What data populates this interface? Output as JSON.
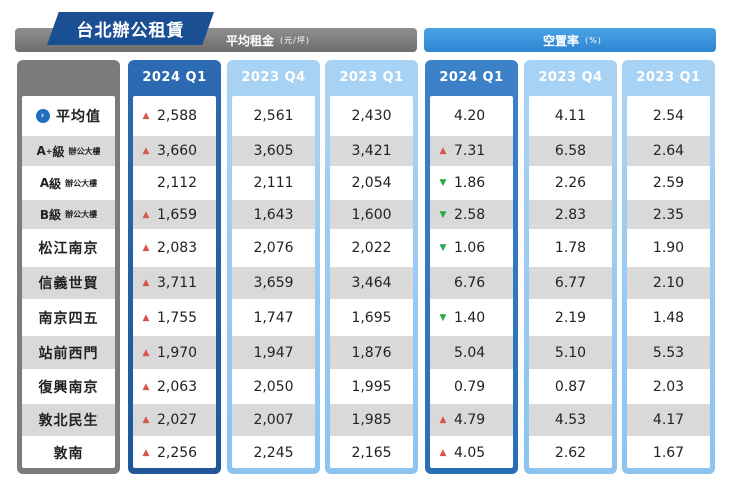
{
  "title": "台北辦公租賃",
  "rent_header": {
    "label": "平均租金",
    "unit": "(元/坪)"
  },
  "vacancy_header": {
    "label": "空置率",
    "unit": "(%)"
  },
  "periods": [
    "2024 Q1",
    "2023 Q4",
    "2023 Q1"
  ],
  "colors": {
    "dark": "#1f5799",
    "light": "#8cc3ef",
    "up": "#d9534f",
    "down": "#27a84a"
  },
  "rows": [
    {
      "label": "平均值",
      "rent": [
        "2,588",
        "2,561",
        "2,430"
      ],
      "rent_mark": "up",
      "vac": [
        "4.20",
        "4.11",
        "2.54"
      ],
      "vac_mark": ""
    },
    {
      "label": "A",
      "sup": "+",
      "grade": "級",
      "sub": "辦公大樓",
      "rent": [
        "3,660",
        "3,605",
        "3,421"
      ],
      "rent_mark": "up",
      "vac": [
        "7.31",
        "6.58",
        "2.64"
      ],
      "vac_mark": "up"
    },
    {
      "label": "A",
      "sup": "",
      "grade": "級",
      "sub": "辦公大樓",
      "rent": [
        "2,112",
        "2,111",
        "2,054"
      ],
      "rent_mark": "",
      "vac": [
        "1.86",
        "2.26",
        "2.59"
      ],
      "vac_mark": "down"
    },
    {
      "label": "B",
      "sup": "",
      "grade": "級",
      "sub": "辦公大樓",
      "rent": [
        "1,659",
        "1,643",
        "1,600"
      ],
      "rent_mark": "up",
      "vac": [
        "2.58",
        "2.83",
        "2.35"
      ],
      "vac_mark": "down"
    },
    {
      "label": "松江南京",
      "rent": [
        "2,083",
        "2,076",
        "2,022"
      ],
      "rent_mark": "up",
      "vac": [
        "1.06",
        "1.78",
        "1.90"
      ],
      "vac_mark": "down"
    },
    {
      "label": "信義世貿",
      "rent": [
        "3,711",
        "3,659",
        "3,464"
      ],
      "rent_mark": "up",
      "vac": [
        "6.76",
        "6.77",
        "2.10"
      ],
      "vac_mark": ""
    },
    {
      "label": "南京四五",
      "rent": [
        "1,755",
        "1,747",
        "1,695"
      ],
      "rent_mark": "up",
      "vac": [
        "1.40",
        "2.19",
        "1.48"
      ],
      "vac_mark": "down"
    },
    {
      "label": "站前西門",
      "rent": [
        "1,970",
        "1,947",
        "1,876"
      ],
      "rent_mark": "up",
      "vac": [
        "5.04",
        "5.10",
        "5.53"
      ],
      "vac_mark": ""
    },
    {
      "label": "復興南京",
      "rent": [
        "2,063",
        "2,050",
        "1,995"
      ],
      "rent_mark": "up",
      "vac": [
        "0.79",
        "0.87",
        "2.03"
      ],
      "vac_mark": ""
    },
    {
      "label": "敦北民生",
      "rent": [
        "2,027",
        "2,007",
        "1,985"
      ],
      "rent_mark": "up",
      "vac": [
        "4.79",
        "4.53",
        "4.17"
      ],
      "vac_mark": "up"
    },
    {
      "label": "敦南",
      "rent": [
        "2,256",
        "2,245",
        "2,165"
      ],
      "rent_mark": "up",
      "vac": [
        "4.05",
        "2.62",
        "1.67"
      ],
      "vac_mark": "up"
    }
  ]
}
